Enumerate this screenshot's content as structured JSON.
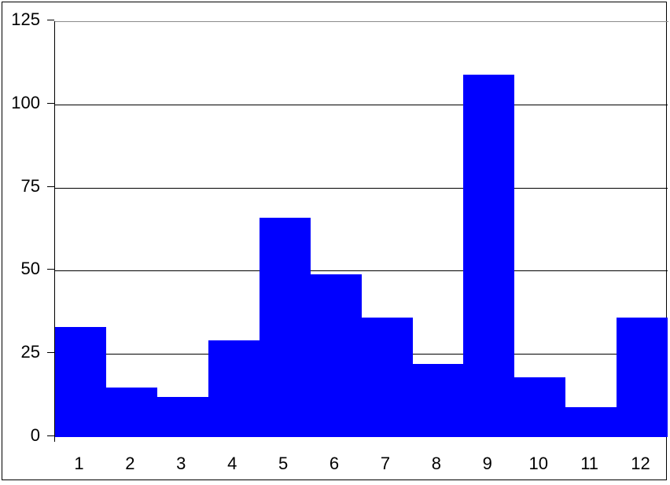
{
  "chart_data": {
    "type": "bar",
    "title": "",
    "xlabel": "",
    "ylabel": "",
    "categories": [
      "1",
      "2",
      "3",
      "4",
      "5",
      "6",
      "7",
      "8",
      "9",
      "10",
      "11",
      "12"
    ],
    "values": [
      33,
      15,
      12,
      29,
      66,
      49,
      36,
      22,
      109,
      18,
      9,
      36
    ],
    "ylim": [
      0,
      125
    ],
    "yticks": [
      0,
      25,
      50,
      75,
      100,
      125
    ],
    "bar_gap": 0,
    "grid": "horizontal",
    "legend": "none",
    "colors": {
      "bar": "#0000ff",
      "gridline": "#000000",
      "axis": "#000000",
      "plot_top_border": "#8c8c8c",
      "frame_border": "#000000",
      "text": "#000000",
      "background": "#ffffff"
    }
  }
}
